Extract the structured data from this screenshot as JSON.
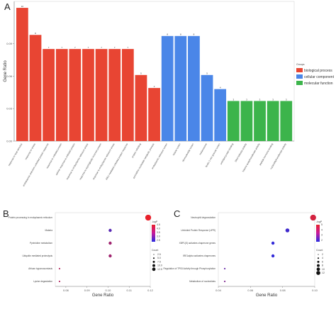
{
  "chart_data": [
    {
      "panel": "A",
      "type": "bar",
      "ylabel": "Gene Ratio",
      "ylim": [
        0,
        0.125
      ],
      "yticks": [
        "0.00",
        "0.03",
        "0.06",
        "0.09"
      ],
      "legend": {
        "title": "Groups",
        "placement": "right",
        "items": [
          "biological process",
          "cellular component",
          "molecular function"
        ]
      },
      "colors": [
        "#e84533",
        "#4a86e8",
        "#3cb44b"
      ],
      "categories": [
        "response to heat stimulus",
        "response to stress",
        "endoplasmic reticulum unfolded protein response",
        "response to unfolded protein",
        "cellular response to unfolded protein",
        "response to endoplasmic reticulum stress",
        "response to topologically incorrect protein",
        "response to endoplasmic reticulum stress",
        "IRE1-mediated unfolded protein response",
        "protein refolding",
        "pyrimidine nucleotide metabolic process",
        "endoplasmic reticulum lumen",
        "vesicle lumen",
        "ribonucleotide lumen",
        "melanosome",
        "ficolin-1-rich granule lumen",
        "unfolded protein binding",
        "DNA helicase activity",
        "histone acetyltransferase activity",
        "peptide-hormone binding",
        "nucleotidyltransferase activity"
      ],
      "values": [
        0.123,
        0.098,
        0.085,
        0.085,
        0.085,
        0.085,
        0.085,
        0.085,
        0.085,
        0.061,
        0.049,
        0.097,
        0.097,
        0.097,
        0.061,
        0.048,
        0.037,
        0.037,
        0.037,
        0.037,
        0.037
      ],
      "groups": [
        0,
        0,
        0,
        0,
        0,
        0,
        0,
        0,
        0,
        0,
        0,
        1,
        1,
        1,
        1,
        1,
        2,
        2,
        2,
        2,
        2
      ],
      "labels": [
        "10",
        "8",
        "7",
        "7",
        "7",
        "7",
        "7",
        "7",
        "7",
        "5",
        "4",
        "8",
        "8",
        "8",
        "5",
        "4",
        "3",
        "3",
        "3",
        "3",
        "3"
      ]
    },
    {
      "panel": "B",
      "type": "scatter",
      "xlabel": "Gene Ratio",
      "xlim": [
        0.075,
        0.12
      ],
      "xticks": [
        "0.08",
        "0.09",
        "0.10",
        "0.11",
        "0.12"
      ],
      "terms": [
        "Protein processing in endoplasmic reticulum",
        "Malaria",
        "Pyrimidine metabolism",
        "Ubiquitin mediated proteolysis",
        "African trypanosomiasis",
        "Lysine degradation"
      ],
      "x": [
        0.119,
        0.101,
        0.101,
        0.101,
        0.077,
        0.077
      ],
      "size": [
        12,
        5,
        5,
        5,
        1,
        1
      ],
      "logP": [
        5.5,
        2.1,
        3.8,
        3.8,
        4.2,
        4.2
      ],
      "legend_color_title": "-logP",
      "legend_color_ticks": [
        "2.5",
        "3.0",
        "3.5",
        "4.0",
        "4.5"
      ],
      "legend_size_title": "Count",
      "legend_size_ticks": [
        "2.5",
        "5.0",
        "7.5",
        "10.0",
        "12.5"
      ]
    },
    {
      "panel": "C",
      "type": "scatter",
      "xlabel": "Gene Ratio",
      "xlim": [
        0.04,
        0.1
      ],
      "xticks": [
        "0.04",
        "0.06",
        "0.08",
        "0.10"
      ],
      "terms": [
        "Neutrophil degranulation",
        "Unfolded Protein Response (UPR)",
        "XBP1(S) activates chaperone genes",
        "IRE1alpha activates chaperones",
        "Regulation of TP53 Activity through Phosphorylation",
        "Metabolism of nucleotides"
      ],
      "x": [
        0.099,
        0.083,
        0.074,
        0.074,
        0.044,
        0.044
      ],
      "size": [
        12,
        7,
        5,
        5,
        1,
        1
      ],
      "logP": [
        5.0,
        1.5,
        1.2,
        1.2,
        2.4,
        3.0
      ],
      "legend_color_title": "-logP",
      "legend_color_ticks": [
        "2",
        "3",
        "4",
        "5"
      ],
      "legend_size_title": "Count",
      "legend_size_ticks": [
        "2",
        "4",
        "6",
        "8",
        "10",
        "12"
      ]
    }
  ]
}
